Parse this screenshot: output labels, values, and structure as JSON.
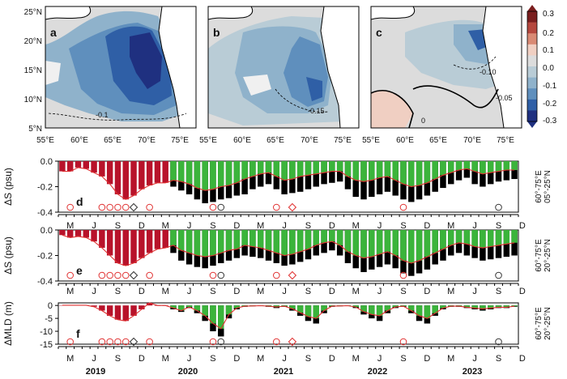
{
  "maps": {
    "lon_ticks": [
      "55°E",
      "60°E",
      "65°E",
      "70°E",
      "75°E"
    ],
    "lat_ticks": [
      "25°N",
      "20°N",
      "15°N",
      "10°N",
      "5°N"
    ],
    "panels": [
      {
        "label": "a",
        "contours": [
          "-0.1"
        ]
      },
      {
        "label": "b",
        "contours": [
          "-0.15"
        ]
      },
      {
        "label": "c",
        "contours": [
          "-0.10",
          "-0.05",
          "0"
        ]
      }
    ],
    "colorbar": {
      "labels": [
        "0.3",
        "0.2",
        "0.1",
        "0.0",
        "-0.1",
        "-0.2",
        "-0.3"
      ],
      "colors": [
        "#7a1e1e",
        "#b5483e",
        "#d98a74",
        "#f0cfc2",
        "#dcdcdc",
        "#b9ccd6",
        "#8fb2cb",
        "#5f8fbd",
        "#2f5fa6",
        "#1f3080"
      ]
    }
  },
  "chart_data": [
    {
      "type": "bar",
      "panel": "d",
      "ylabel": "ΔS (psu)",
      "ylim": [
        -0.4,
        0.0
      ],
      "yticks": [
        "0.0",
        "-0.2",
        "-0.4"
      ],
      "region_label": [
        "60°-75°E",
        "05°-25°N"
      ],
      "months_start": "2019-03",
      "n_months": 58,
      "series": [
        {
          "name": "ΔS",
          "values": [
            -0.08,
            -0.08,
            -0.05,
            -0.06,
            -0.09,
            -0.12,
            -0.18,
            -0.26,
            -0.3,
            -0.27,
            -0.22,
            -0.19,
            -0.17,
            -0.17,
            -0.2,
            -0.23,
            -0.26,
            -0.3,
            -0.33,
            -0.32,
            -0.3,
            -0.29,
            -0.27,
            -0.26,
            -0.22,
            -0.2,
            -0.18,
            -0.22,
            -0.26,
            -0.25,
            -0.24,
            -0.22,
            -0.2,
            -0.18,
            -0.17,
            -0.16,
            -0.22,
            -0.28,
            -0.3,
            -0.28,
            -0.26,
            -0.24,
            -0.27,
            -0.3,
            -0.32,
            -0.3,
            -0.27,
            -0.24,
            -0.21,
            -0.18,
            -0.15,
            -0.13,
            -0.18,
            -0.2,
            -0.18,
            -0.16,
            -0.15,
            -0.14
          ]
        },
        {
          "name": "component",
          "values": [
            -0.08,
            -0.08,
            -0.05,
            -0.06,
            -0.09,
            -0.12,
            -0.18,
            -0.26,
            -0.3,
            -0.27,
            -0.22,
            -0.19,
            -0.17,
            -0.17,
            -0.15,
            -0.16,
            -0.18,
            -0.21,
            -0.23,
            -0.22,
            -0.2,
            -0.19,
            -0.17,
            -0.14,
            -0.12,
            -0.1,
            -0.09,
            -0.12,
            -0.15,
            -0.14,
            -0.12,
            -0.11,
            -0.1,
            -0.09,
            -0.08,
            -0.08,
            -0.12,
            -0.15,
            -0.16,
            -0.15,
            -0.13,
            -0.12,
            -0.15,
            -0.18,
            -0.2,
            -0.19,
            -0.17,
            -0.14,
            -0.11,
            -0.09,
            -0.07,
            -0.06,
            -0.08,
            -0.1,
            -0.09,
            -0.08,
            -0.07,
            -0.07
          ]
        }
      ]
    },
    {
      "type": "bar",
      "panel": "e",
      "ylabel": "ΔS (psu)",
      "ylim": [
        -0.4,
        0.0
      ],
      "yticks": [
        "0.0",
        "-0.2",
        "-0.4"
      ],
      "region_label": [
        "60°-75°E",
        "20°-25°N"
      ],
      "months_start": "2019-03",
      "n_months": 58,
      "series": [
        {
          "name": "ΔS",
          "values": [
            -0.04,
            -0.06,
            -0.05,
            -0.06,
            -0.09,
            -0.14,
            -0.2,
            -0.26,
            -0.28,
            -0.26,
            -0.22,
            -0.18,
            -0.15,
            -0.14,
            -0.18,
            -0.24,
            -0.27,
            -0.29,
            -0.3,
            -0.28,
            -0.26,
            -0.24,
            -0.22,
            -0.2,
            -0.21,
            -0.22,
            -0.24,
            -0.26,
            -0.28,
            -0.27,
            -0.25,
            -0.23,
            -0.2,
            -0.18,
            -0.16,
            -0.2,
            -0.26,
            -0.3,
            -0.33,
            -0.31,
            -0.29,
            -0.27,
            -0.3,
            -0.34,
            -0.36,
            -0.34,
            -0.31,
            -0.27,
            -0.24,
            -0.2,
            -0.18,
            -0.2,
            -0.22,
            -0.24,
            -0.23,
            -0.22,
            -0.21,
            -0.2
          ]
        },
        {
          "name": "component",
          "values": [
            -0.04,
            -0.06,
            -0.05,
            -0.06,
            -0.09,
            -0.14,
            -0.2,
            -0.26,
            -0.28,
            -0.26,
            -0.22,
            -0.18,
            -0.15,
            -0.14,
            -0.12,
            -0.16,
            -0.18,
            -0.2,
            -0.21,
            -0.2,
            -0.18,
            -0.16,
            -0.15,
            -0.12,
            -0.13,
            -0.14,
            -0.16,
            -0.18,
            -0.2,
            -0.19,
            -0.17,
            -0.15,
            -0.12,
            -0.1,
            -0.09,
            -0.12,
            -0.17,
            -0.2,
            -0.22,
            -0.21,
            -0.19,
            -0.17,
            -0.2,
            -0.24,
            -0.26,
            -0.24,
            -0.21,
            -0.18,
            -0.15,
            -0.12,
            -0.1,
            -0.11,
            -0.13,
            -0.14,
            -0.13,
            -0.12,
            -0.11,
            -0.1
          ]
        }
      ]
    },
    {
      "type": "bar",
      "panel": "f",
      "ylabel": "ΔMLD (m)",
      "ylim": [
        -15,
        1
      ],
      "yticks": [
        "0",
        "-5",
        "-10",
        "-15"
      ],
      "region_label": [
        "60°-75°E",
        "20°-25°N"
      ],
      "months_start": "2019-03",
      "n_months": 58,
      "series": [
        {
          "name": "ΔMLD",
          "values": [
            0.1,
            0.1,
            0.1,
            0.1,
            -0.5,
            -2,
            -4,
            -5.5,
            -6,
            -4,
            -1.5,
            1,
            0,
            0,
            -1.5,
            -2.5,
            -1,
            -3,
            -6,
            -10,
            -12,
            -5,
            -1.5,
            -0.5,
            -0.3,
            -0.2,
            -0.5,
            -1,
            -0.5,
            -2,
            -4,
            -6,
            -7,
            -3,
            -0.5,
            -0.3,
            -0.2,
            -1,
            -3.5,
            -5,
            -6,
            -3,
            -1,
            -0.5,
            -3,
            -6,
            -7,
            -4,
            -1.5,
            -0.5,
            -0.5,
            -1,
            -1.5,
            -2,
            -1.5,
            -1,
            -1,
            -0.5
          ]
        },
        {
          "name": "component",
          "values": [
            0.1,
            0.1,
            0.1,
            0.1,
            -0.5,
            -2,
            -4,
            -5.5,
            -6,
            -4,
            -1.5,
            1,
            0,
            0,
            -1,
            -2,
            -0.6,
            -2,
            -4,
            -7,
            -9,
            -3.5,
            -1,
            -0.3,
            -0.2,
            -0.1,
            -0.3,
            -0.6,
            -0.3,
            -1.3,
            -2.8,
            -4.3,
            -5,
            -2,
            -0.3,
            -0.2,
            -0.1,
            -0.6,
            -2.4,
            -3.5,
            -4,
            -2,
            -0.6,
            -0.3,
            -2,
            -4,
            -5,
            -3,
            -1,
            -0.3,
            -0.3,
            -0.7,
            -1,
            -1.3,
            -1,
            -0.7,
            -0.7,
            -0.3
          ]
        }
      ]
    }
  ],
  "timeline": {
    "month_labels": [
      "M",
      "J",
      "S",
      "D",
      "M",
      "J",
      "S",
      "D",
      "M",
      "J",
      "S",
      "D",
      "M",
      "J",
      "S",
      "D",
      "M",
      "J",
      "S",
      "D"
    ],
    "year_labels": [
      "2019",
      "2020",
      "2021",
      "2022",
      "2023"
    ]
  }
}
